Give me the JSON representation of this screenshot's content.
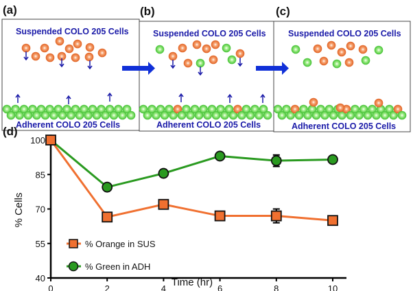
{
  "panels": [
    {
      "label": "(a)",
      "top_text": "Suspended COLO 205 Cells",
      "bottom_text": "Adherent COLO 205 Cells"
    },
    {
      "label": "(b)",
      "top_text": "Suspended COLO 205 Cells",
      "bottom_text": "Adherent COLO 205 Cells"
    },
    {
      "label": "(c)",
      "top_text": "Suspended COLO 205 Cells",
      "bottom_text": "Adherent COLO 205 Cells"
    }
  ],
  "colors": {
    "orange": "#f07030",
    "green": "#3cb030",
    "text_blue": "#1a1aa8",
    "arrow_blue": "#1030d8"
  },
  "chart_data": {
    "panel_label": "(d)",
    "type": "line",
    "xlabel": "Time (hr)",
    "ylabel": "% Cells",
    "x": [
      0,
      2,
      4,
      6,
      8,
      10
    ],
    "xticks": [
      "0",
      "2",
      "4",
      "6",
      "8",
      "10"
    ],
    "yticks": [
      "40",
      "55",
      "70",
      "85",
      "100"
    ],
    "xlim": [
      0,
      10
    ],
    "ylim": [
      40,
      100
    ],
    "grid": false,
    "legend_position": "bottom-left",
    "series": [
      {
        "name": "% Orange in SUS",
        "marker": "square",
        "color": "#f07030",
        "values": [
          100,
          66.5,
          72,
          67,
          67,
          65
        ],
        "errors": [
          0,
          0.5,
          0.5,
          1,
          3,
          0.5
        ]
      },
      {
        "name": "% Green in ADH",
        "marker": "circle",
        "color": "#2a9a20",
        "values": [
          100,
          79.5,
          85.5,
          93,
          91,
          91.5
        ],
        "errors": [
          0,
          0.5,
          0.5,
          0.5,
          2.5,
          0.5
        ]
      }
    ]
  }
}
